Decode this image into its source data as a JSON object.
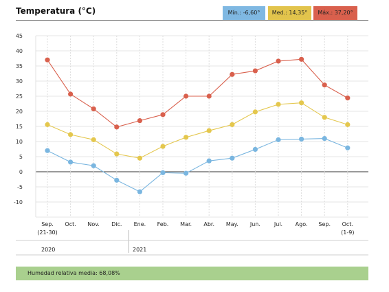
{
  "title": "Temperatura (°C)",
  "badges": {
    "min": "Mín.: -6,60°",
    "med": "Med.: 14,35°",
    "max": "Máx.: 37,20°"
  },
  "footer": "Humedad relativa media: 68,08%",
  "colors": {
    "min": "#7ab6e0",
    "med": "#e4c74d",
    "max": "#d9604d",
    "min_badge": "#7fb8e2",
    "med_badge": "#e2c44c",
    "max_badge": "#d9604d",
    "footer_bg": "#a9d08e",
    "grid": "#e4e4e4"
  },
  "chart_data": {
    "type": "line",
    "categories": [
      "Sep.",
      "Oct.",
      "Nov.",
      "Dic.",
      "Ene.",
      "Feb.",
      "Mar.",
      "Abr.",
      "May.",
      "Jun.",
      "Jul.",
      "Ago.",
      "Sep.",
      "Oct."
    ],
    "category_sublabels": [
      "(21-30)",
      "",
      "",
      "",
      "",
      "",
      "",
      "",
      "",
      "",
      "",
      "",
      "",
      "(1-9)"
    ],
    "years": [
      "2020",
      "2021"
    ],
    "series": [
      {
        "key": "max",
        "values": [
          37.0,
          25.7,
          20.8,
          14.8,
          16.9,
          18.9,
          25.0,
          25.0,
          32.2,
          33.4,
          36.6,
          37.2,
          28.7,
          24.4
        ]
      },
      {
        "key": "med",
        "values": [
          15.6,
          12.3,
          10.6,
          5.9,
          4.5,
          8.4,
          11.4,
          13.6,
          15.6,
          19.8,
          22.3,
          22.8,
          18.0,
          15.6
        ]
      },
      {
        "key": "min",
        "values": [
          7.0,
          3.2,
          2.0,
          -2.8,
          -6.6,
          -0.3,
          -0.5,
          3.6,
          4.5,
          7.4,
          10.6,
          10.8,
          11.0,
          7.9
        ]
      }
    ],
    "yticks": [
      45,
      40,
      35,
      30,
      25,
      20,
      15,
      10,
      5,
      0,
      -5,
      -10
    ],
    "ylim": [
      -15,
      45
    ],
    "grid": true,
    "legend_position": "top-right"
  }
}
